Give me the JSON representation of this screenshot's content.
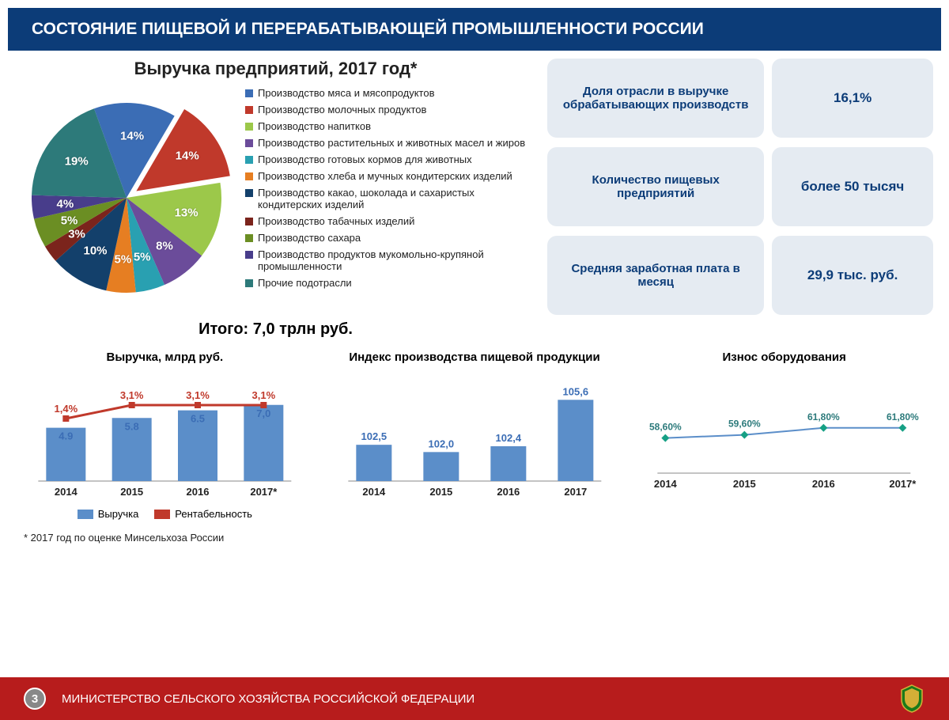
{
  "header": {
    "title": "СОСТОЯНИЕ ПИЩЕВОЙ И ПЕРЕРАБАТЫВАЮЩЕЙ ПРОМЫШЛЕННОСТИ РОССИИ"
  },
  "pie": {
    "title": "Выручка предприятий, 2017 год*",
    "total": "Итого: 7,0 трлн руб.",
    "type": "pie",
    "exploded_index": 1,
    "slices": [
      {
        "value": 14,
        "label": "14%",
        "color": "#3b6db5",
        "legend": "Производство мяса и мясопродуктов"
      },
      {
        "value": 14,
        "label": "14%",
        "color": "#c0392b",
        "legend": "Производство молочных продуктов"
      },
      {
        "value": 13,
        "label": "13%",
        "color": "#9cc84a",
        "legend": "Производство напитков"
      },
      {
        "value": 8,
        "label": "8%",
        "color": "#6b4c9a",
        "legend": "Производство растительных и животных масел и жиров"
      },
      {
        "value": 5,
        "label": "5%",
        "color": "#29a0b1",
        "legend": "Производство готовых кормов для животных"
      },
      {
        "value": 5,
        "label": "5%",
        "color": "#e67e22",
        "legend": "Производство хлеба и мучных кондитерских изделий"
      },
      {
        "value": 10,
        "label": "10%",
        "color": "#13406b",
        "legend": "Производство какао, шоколада и сахаристых кондитерских изделий"
      },
      {
        "value": 3,
        "label": "3%",
        "color": "#7b241c",
        "legend": "Производство табачных изделий"
      },
      {
        "value": 5,
        "label": "5%",
        "color": "#6b8e23",
        "legend": "Производство сахара"
      },
      {
        "value": 4,
        "label": "4%",
        "color": "#483d8b",
        "legend": "Производство продуктов мукомольно-крупяной промышленности"
      },
      {
        "value": 19,
        "label": "19%",
        "color": "#2d7a7a",
        "legend": "Прочие подотрасли"
      }
    ]
  },
  "stats": [
    {
      "label": "Доля отрасли в выручке обрабатывающих производств",
      "value": "16,1%"
    },
    {
      "label": "Количество пищевых предприятий",
      "value": "более 50 тысяч"
    },
    {
      "label": "Средняя заработная плата в месяц",
      "value": "29,9 тыс. руб."
    }
  ],
  "revenue_chart": {
    "title": "Выручка, млрд руб.",
    "type": "bar+line",
    "categories": [
      "2014",
      "2015",
      "2016",
      "2017*"
    ],
    "bars": {
      "values": [
        4.9,
        5.8,
        6.5,
        7.0
      ],
      "labels": [
        "4.9",
        "5.8",
        "6.5",
        "7,0"
      ],
      "color": "#5b8ec9",
      "legend": "Выручка"
    },
    "line": {
      "values": [
        1.4,
        3.1,
        3.1,
        3.1
      ],
      "labels": [
        "1,4%",
        "3,1%",
        "3,1%",
        "3,1%"
      ],
      "color": "#c0392b",
      "legend": "Рентабельность"
    },
    "ylim": [
      0,
      8
    ]
  },
  "index_chart": {
    "title": "Индекс производства пищевой продукции",
    "type": "bar",
    "categories": [
      "2014",
      "2015",
      "2016",
      "2017"
    ],
    "values": [
      102.5,
      102.0,
      102.4,
      105.6
    ],
    "labels": [
      "102,5",
      "102,0",
      "102,4",
      "105,6"
    ],
    "color": "#5b8ec9",
    "ylim": [
      100,
      106
    ]
  },
  "wear_chart": {
    "title": "Износ оборудования",
    "type": "line",
    "categories": [
      "2014",
      "2015",
      "2016",
      "2017*"
    ],
    "values": [
      58.6,
      59.6,
      61.8,
      61.8
    ],
    "labels": [
      "58,60%",
      "59,60%",
      "61,80%",
      "61,80%"
    ],
    "line_color": "#5b8ec9",
    "marker_color": "#16a085",
    "ylim": [
      55,
      65
    ]
  },
  "footnote": "* 2017 год по оценке Минсельхоза России",
  "footer": {
    "text": "МИНИСТЕРСТВО СЕЛЬСКОГО ХОЗЯЙСТВА РОССИЙСКОЙ ФЕДЕРАЦИИ",
    "page": "3"
  }
}
